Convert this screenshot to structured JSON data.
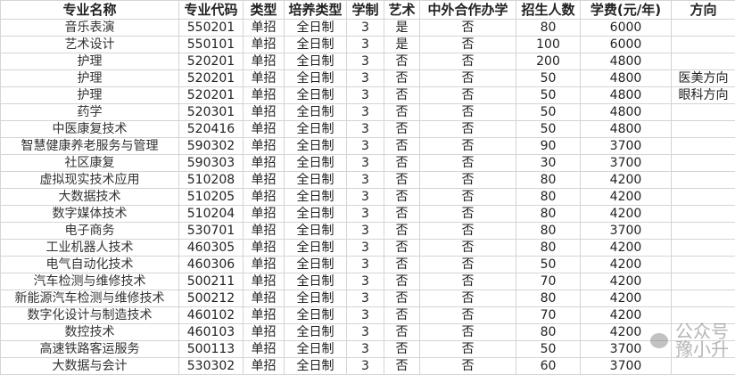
{
  "headers": [
    "专业名称",
    "专业代码",
    "类型",
    "培养类型",
    "学制",
    "艺术",
    "中外合作办学",
    "招生人数",
    "学费(元/年)",
    "方向"
  ],
  "rows": [
    [
      "音乐表演",
      "550201",
      "单招",
      "全日制",
      "3",
      "是",
      "否",
      "80",
      "6000",
      ""
    ],
    [
      "艺术设计",
      "550101",
      "单招",
      "全日制",
      "3",
      "是",
      "否",
      "100",
      "6000",
      ""
    ],
    [
      "护理",
      "520201",
      "单招",
      "全日制",
      "3",
      "否",
      "否",
      "200",
      "4800",
      ""
    ],
    [
      "护理",
      "520201",
      "单招",
      "全日制",
      "3",
      "否",
      "否",
      "50",
      "4800",
      "医美方向"
    ],
    [
      "护理",
      "520201",
      "单招",
      "全日制",
      "3",
      "否",
      "否",
      "50",
      "4800",
      "眼科方向"
    ],
    [
      "药学",
      "520301",
      "单招",
      "全日制",
      "3",
      "否",
      "否",
      "50",
      "4800",
      ""
    ],
    [
      "中医康复技术",
      "520416",
      "单招",
      "全日制",
      "3",
      "否",
      "否",
      "50",
      "4800",
      ""
    ],
    [
      "智慧健康养老服务与管理",
      "590302",
      "单招",
      "全日制",
      "3",
      "否",
      "否",
      "90",
      "3700",
      ""
    ],
    [
      "社区康复",
      "590303",
      "单招",
      "全日制",
      "3",
      "否",
      "否",
      "30",
      "3700",
      ""
    ],
    [
      "虚拟现实技术应用",
      "510208",
      "单招",
      "全日制",
      "3",
      "否",
      "否",
      "80",
      "4200",
      ""
    ],
    [
      "大数据技术",
      "510205",
      "单招",
      "全日制",
      "3",
      "否",
      "否",
      "80",
      "4200",
      ""
    ],
    [
      "数字媒体技术",
      "510204",
      "单招",
      "全日制",
      "3",
      "否",
      "否",
      "80",
      "4200",
      ""
    ],
    [
      "电子商务",
      "530701",
      "单招",
      "全日制",
      "3",
      "否",
      "否",
      "80",
      "3700",
      ""
    ],
    [
      "工业机器人技术",
      "460305",
      "单招",
      "全日制",
      "3",
      "否",
      "否",
      "80",
      "4200",
      ""
    ],
    [
      "电气自动化技术",
      "460306",
      "单招",
      "全日制",
      "3",
      "否",
      "否",
      "50",
      "4200",
      ""
    ],
    [
      "汽车检测与维修技术",
      "500211",
      "单招",
      "全日制",
      "3",
      "否",
      "否",
      "70",
      "4200",
      ""
    ],
    [
      "新能源汽车检测与维修技术",
      "500212",
      "单招",
      "全日制",
      "3",
      "否",
      "否",
      "80",
      "4200",
      ""
    ],
    [
      "数字化设计与制造技术",
      "460102",
      "单招",
      "全日制",
      "3",
      "否",
      "否",
      "70",
      "4200",
      ""
    ],
    [
      "数控技术",
      "460103",
      "单招",
      "全日制",
      "3",
      "否",
      "否",
      "80",
      "4200",
      ""
    ],
    [
      "高速铁路客运服务",
      "500113",
      "单招",
      "全日制",
      "3",
      "否",
      "否",
      "50",
      "3700",
      ""
    ],
    [
      "大数据与会计",
      "530302",
      "单招",
      "全日制",
      "3",
      "否",
      "否",
      "60",
      "3700",
      ""
    ]
  ],
  "watermark": {
    "prefix": "公众号",
    "name": "豫小升",
    "icon": "wechat-icon"
  }
}
